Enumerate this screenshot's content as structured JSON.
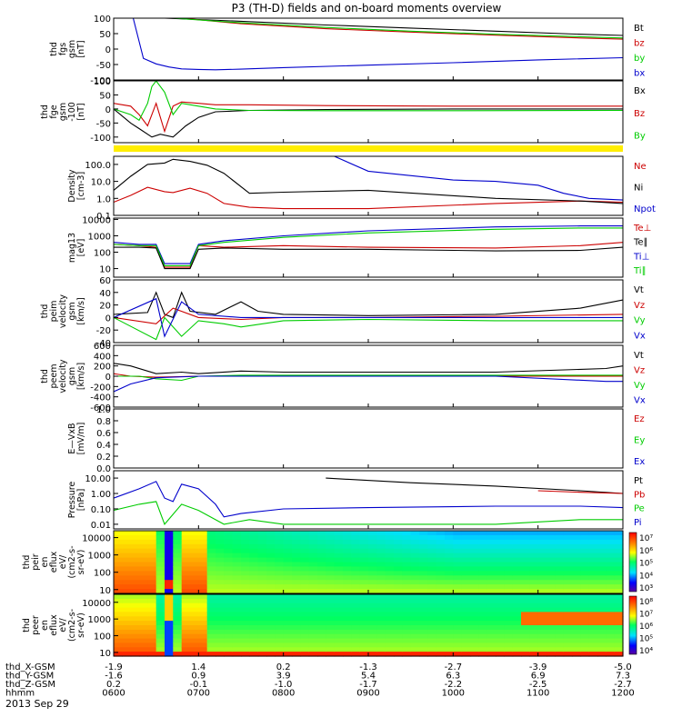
{
  "chart_data": {
    "type": "line",
    "title": "P3 (TH-D) fields and on-board moments overview",
    "date": "2013 Sep 29",
    "x_axis": {
      "unit": "hhmm",
      "range": [
        0,
        6
      ],
      "ticks": [
        "0600",
        "0700",
        "0800",
        "0900",
        "1000",
        "1100",
        "1200"
      ],
      "rows": [
        {
          "label": "thd_X-GSM",
          "values": [
            "-1.9",
            "1.4",
            "0.2",
            "-1.3",
            "-2.7",
            "-3.9",
            "-5.0"
          ]
        },
        {
          "label": "thd_Y-GSM",
          "values": [
            "-1.6",
            "0.9",
            "3.9",
            "5.4",
            "6.3",
            "6.9",
            "7.3"
          ]
        },
        {
          "label": "thd_Z-GSM",
          "values": [
            "0.2",
            "-0.1",
            "-1.0",
            "-1.7",
            "-2.2",
            "-2.5",
            "-2.7"
          ]
        },
        {
          "label": "hhmm",
          "values": [
            "0600",
            "0700",
            "0800",
            "0900",
            "1000",
            "1100",
            "1200"
          ]
        }
      ]
    },
    "panels": [
      {
        "ylabel": [
          "thd",
          "fgs",
          "gsm",
          "[nT]"
        ],
        "yscale": "linear",
        "ylim": [
          -100,
          100
        ],
        "yticks": [
          "100",
          "50",
          "0",
          "-50",
          "-100"
        ],
        "series": [
          {
            "name": "Bt",
            "color": "#000000",
            "x": [
              0.6,
              1.5,
              2.5,
              3.5,
              4.5,
              5.5,
              6.0
            ],
            "y": [
              100,
              90,
              78,
              68,
              58,
              48,
              44
            ]
          },
          {
            "name": "bz",
            "color": "#cc0000",
            "x": [
              0.8,
              1.5,
              2.5,
              3.5,
              4.5,
              5.5,
              6.0
            ],
            "y": [
              100,
              82,
              66,
              55,
              45,
              36,
              32
            ]
          },
          {
            "name": "by",
            "color": "#00cc00",
            "x": [
              0.7,
              1.5,
              2.5,
              3.5,
              4.5,
              5.5,
              6.0
            ],
            "y": [
              100,
              85,
              70,
              58,
              48,
              40,
              36
            ]
          },
          {
            "name": "bx",
            "color": "#0000cc",
            "x": [
              0.23,
              0.35,
              0.5,
              0.65,
              0.8,
              1.0,
              1.2,
              1.5,
              2.0,
              3.0,
              4.0,
              5.0,
              6.0
            ],
            "y": [
              100,
              -30,
              -48,
              -58,
              -64,
              -66,
              -67,
              -65,
              -60,
              -52,
              -44,
              -35,
              -28
            ]
          }
        ]
      },
      {
        "ylabel": [
          "thd",
          "fge",
          "gsm",
          "-100",
          "[nT]"
        ],
        "yscale": "linear",
        "ylim": [
          -120,
          100
        ],
        "yticks": [
          "100",
          "50",
          "0",
          "-50",
          "-100"
        ],
        "series": [
          {
            "name": "Bx",
            "color": "#000000",
            "x": [
              0,
              0.2,
              0.3,
              0.45,
              0.55,
              0.7,
              0.85,
              1.0,
              1.2,
              1.6,
              2.5,
              4.0,
              6.0
            ],
            "y": [
              0,
              -50,
              -70,
              -100,
              -90,
              -100,
              -60,
              -30,
              -10,
              -5,
              -2,
              0,
              0
            ]
          },
          {
            "name": "Bz",
            "color": "#cc0000",
            "x": [
              0,
              0.2,
              0.3,
              0.4,
              0.5,
              0.6,
              0.7,
              0.8,
              1.0,
              1.2,
              1.6,
              2.5,
              4.0,
              6.0
            ],
            "y": [
              20,
              10,
              -20,
              -60,
              20,
              -80,
              10,
              25,
              20,
              15,
              15,
              12,
              10,
              10
            ]
          },
          {
            "name": "By",
            "color": "#00cc00",
            "x": [
              0,
              0.2,
              0.3,
              0.4,
              0.45,
              0.5,
              0.6,
              0.7,
              0.8,
              1.0,
              1.2,
              1.6,
              2.5,
              4.0,
              6.0
            ],
            "y": [
              0,
              -20,
              -40,
              20,
              80,
              100,
              60,
              -20,
              20,
              10,
              0,
              -5,
              -6,
              -6,
              -5
            ]
          }
        ]
      },
      {
        "ylabel": [
          "Density",
          "[cm-3]"
        ],
        "yscale": "log",
        "ylim": [
          0.1,
          300
        ],
        "yticks": [
          "100.0",
          "10.0",
          "1.0",
          "0.1"
        ],
        "series": [
          {
            "name": "Ne",
            "color": "#cc0000",
            "x": [
              0,
              0.2,
              0.4,
              0.6,
              0.7,
              0.9,
              1.1,
              1.3,
              1.6,
              2.0,
              3.0,
              4.5,
              5.5,
              6.0
            ],
            "y": [
              0.6,
              1.5,
              4.5,
              2.5,
              2.2,
              4.0,
              2.0,
              0.5,
              0.3,
              0.25,
              0.25,
              0.5,
              0.7,
              0.6
            ]
          },
          {
            "name": "Ni",
            "color": "#000000",
            "x": [
              0,
              0.2,
              0.4,
              0.6,
              0.7,
              0.9,
              1.1,
              1.3,
              1.6,
              2.0,
              3.0,
              4.5,
              5.5,
              6.0
            ],
            "y": [
              3,
              20,
              100,
              120,
              200,
              150,
              90,
              30,
              2,
              2.3,
              3,
              1.0,
              0.7,
              0.5
            ]
          },
          {
            "name": "Npot",
            "color": "#0000cc",
            "x": [
              2.6,
              3.0,
              4.0,
              4.5,
              5.0,
              5.3,
              5.6,
              6.0
            ],
            "y": [
              300,
              40,
              12,
              10,
              6,
              2,
              1,
              0.8
            ]
          }
        ]
      },
      {
        "ylabel": [
          "mag13",
          "[eV]"
        ],
        "yscale": "log",
        "ylim": [
          3,
          12000
        ],
        "yticks": [
          "10000",
          "1000",
          "100",
          "10"
        ],
        "series": [
          {
            "name": "Te⊥",
            "color": "#cc0000",
            "x": [
              0,
              0.3,
              0.5,
              0.6,
              0.9,
              1.0,
              1.3,
              2.0,
              3.0,
              4.5,
              5.5,
              6.0
            ],
            "y": [
              300,
              250,
              200,
              12,
              12,
              250,
              200,
              250,
              200,
              180,
              250,
              400
            ]
          },
          {
            "name": "Te∥",
            "color": "#000000",
            "x": [
              0,
              0.3,
              0.5,
              0.6,
              0.9,
              1.0,
              1.3,
              2.0,
              3.0,
              4.5,
              5.5,
              6.0
            ],
            "y": [
              200,
              200,
              180,
              10,
              10,
              150,
              180,
              150,
              150,
              120,
              130,
              200
            ]
          },
          {
            "name": "Ti⊥",
            "color": "#0000cc",
            "x": [
              0,
              0.3,
              0.5,
              0.6,
              0.9,
              1.0,
              1.3,
              2.0,
              3.0,
              4.5,
              5.5,
              6.0
            ],
            "y": [
              400,
              300,
              300,
              20,
              20,
              300,
              500,
              1000,
              2000,
              3500,
              4000,
              4000
            ]
          },
          {
            "name": "Ti∥",
            "color": "#00cc00",
            "x": [
              0,
              0.3,
              0.5,
              0.6,
              0.9,
              1.0,
              1.3,
              2.0,
              3.0,
              4.5,
              5.5,
              6.0
            ],
            "y": [
              300,
              250,
              250,
              15,
              15,
              250,
              400,
              800,
              1500,
              2500,
              3000,
              3000
            ]
          }
        ]
      },
      {
        "ylabel": [
          "thd",
          "peim",
          "velocity",
          "gsm",
          "[km/s]"
        ],
        "yscale": "linear",
        "ylim": [
          -40,
          60
        ],
        "yticks": [
          "60",
          "40",
          "20",
          "0",
          "-20",
          "-40"
        ],
        "series": [
          {
            "name": "Vt",
            "color": "#000000",
            "x": [
              0,
              0.4,
              0.5,
              0.6,
              0.7,
              0.8,
              0.9,
              1.2,
              1.5,
              1.7,
              2.0,
              3.0,
              4.5,
              5.5,
              6.0
            ],
            "y": [
              5,
              8,
              40,
              5,
              0,
              40,
              10,
              5,
              25,
              10,
              5,
              3,
              5,
              15,
              28
            ]
          },
          {
            "name": "Vz",
            "color": "#cc0000",
            "x": [
              0,
              0.5,
              0.7,
              1.0,
              1.5,
              2.0,
              3.0,
              4.5,
              6.0
            ],
            "y": [
              0,
              -10,
              15,
              0,
              -3,
              0,
              0,
              2,
              5
            ]
          },
          {
            "name": "Vy",
            "color": "#00cc00",
            "x": [
              0,
              0.5,
              0.6,
              0.8,
              1.0,
              1.3,
              1.5,
              2.0,
              3.0,
              4.5,
              6.0
            ],
            "y": [
              0,
              -35,
              0,
              -30,
              -5,
              -10,
              -15,
              -5,
              -3,
              -5,
              -5
            ]
          },
          {
            "name": "Vx",
            "color": "#0000cc",
            "x": [
              0,
              0.5,
              0.6,
              0.8,
              1.0,
              1.5,
              2.0,
              3.0,
              4.5,
              6.0
            ],
            "y": [
              0,
              30,
              -30,
              25,
              5,
              0,
              0,
              0,
              0,
              0
            ]
          }
        ]
      },
      {
        "ylabel": [
          "thd",
          "peem",
          "velocity",
          "gsm",
          "[km/s]"
        ],
        "yscale": "linear",
        "ylim": [
          -600,
          600
        ],
        "yticks": [
          "600",
          "400",
          "200",
          "0",
          "-200",
          "-400",
          "-600"
        ],
        "series": [
          {
            "name": "Vt",
            "color": "#000000",
            "x": [
              0,
              0.2,
              0.5,
              0.8,
              1.0,
              1.5,
              2.0,
              3.0,
              4.5,
              5.8,
              6.0
            ],
            "y": [
              250,
              200,
              50,
              80,
              50,
              100,
              80,
              80,
              80,
              150,
              200
            ]
          },
          {
            "name": "Vz",
            "color": "#cc0000",
            "x": [
              0,
              0.2,
              0.5,
              1.0,
              2.0,
              3.0,
              4.5,
              6.0
            ],
            "y": [
              50,
              0,
              -20,
              0,
              0,
              0,
              0,
              0
            ]
          },
          {
            "name": "Vy",
            "color": "#00cc00",
            "x": [
              0,
              0.3,
              0.5,
              0.8,
              1.0,
              1.5,
              2.0,
              3.0,
              4.5,
              6.0
            ],
            "y": [
              0,
              0,
              -50,
              -80,
              0,
              20,
              20,
              20,
              20,
              20
            ]
          },
          {
            "name": "Vx",
            "color": "#0000cc",
            "x": [
              0,
              0.2,
              0.5,
              1.0,
              1.5,
              2.0,
              3.0,
              4.5,
              5.8,
              6.0
            ],
            "y": [
              -300,
              -150,
              -30,
              0,
              0,
              0,
              0,
              0,
              -100,
              -100
            ]
          }
        ]
      },
      {
        "ylabel": [
          "E—VxB",
          "[mV/m]"
        ],
        "yscale": "linear",
        "ylim": [
          0,
          1
        ],
        "yticks": [
          "1.0",
          "0.8",
          "0.6",
          "0.4",
          "0.2",
          "0.0"
        ],
        "series": [
          {
            "name": "Ez",
            "color": "#cc0000",
            "x": [],
            "y": []
          },
          {
            "name": "Ey",
            "color": "#00cc00",
            "x": [],
            "y": []
          },
          {
            "name": "Ex",
            "color": "#0000cc",
            "x": [],
            "y": []
          }
        ]
      },
      {
        "ylabel": [
          "Pressure",
          "[nPa]"
        ],
        "yscale": "log",
        "ylim": [
          0.005,
          30
        ],
        "yticks": [
          "10.00",
          "1.00",
          "0.10",
          "0.01"
        ],
        "series": [
          {
            "name": "Pt",
            "color": "#000000",
            "x": [
              2.5,
              3.5,
              4.5,
              5.5,
              6.0
            ],
            "y": [
              10,
              5,
              3,
              1.5,
              1.0
            ]
          },
          {
            "name": "Pb",
            "color": "#cc0000",
            "x": [
              5.0,
              5.5,
              6.0
            ],
            "y": [
              1.5,
              1.2,
              1.0
            ]
          },
          {
            "name": "Pe",
            "color": "#00cc00",
            "x": [
              0,
              0.3,
              0.5,
              0.6,
              0.8,
              1.0,
              1.3,
              1.6,
              2.0,
              3.0,
              4.5,
              5.5,
              6.0
            ],
            "y": [
              0.08,
              0.2,
              0.3,
              0.01,
              0.2,
              0.08,
              0.01,
              0.02,
              0.01,
              0.01,
              0.01,
              0.02,
              0.02
            ]
          },
          {
            "name": "Pi",
            "color": "#0000cc",
            "x": [
              0,
              0.3,
              0.5,
              0.6,
              0.7,
              0.8,
              1.0,
              1.2,
              1.3,
              1.5,
              2.0,
              3.0,
              4.5,
              5.5,
              6.0
            ],
            "y": [
              0.5,
              2,
              6,
              0.5,
              0.3,
              4,
              2,
              0.2,
              0.03,
              0.05,
              0.1,
              0.12,
              0.15,
              0.15,
              0.12
            ]
          }
        ]
      },
      {
        "type": "heatmap",
        "ylabel": [
          "thd",
          "peir",
          "en",
          "eflux",
          "eV/",
          "(cm2-s-",
          "sr-eV)"
        ],
        "yscale": "log",
        "ylim": [
          6,
          25000
        ],
        "yticks": [
          "10000",
          "1000",
          "100",
          "10"
        ],
        "colorbar": {
          "ticks": [
            "10⁷",
            "10⁶",
            "10⁵",
            "10⁴",
            "10³"
          ],
          "range_log10": [
            2.7,
            7.5
          ]
        }
      },
      {
        "type": "heatmap",
        "ylabel": [
          "thd",
          "peer",
          "en",
          "eflux",
          "eV/",
          "(cm2-s-",
          "sr-eV)"
        ],
        "yscale": "log",
        "ylim": [
          6,
          30000
        ],
        "yticks": [
          "10000",
          "1000",
          "100",
          "10"
        ],
        "colorbar": {
          "ticks": [
            "10⁸",
            "10⁷",
            "10⁶",
            "10⁵",
            "10⁴"
          ],
          "range_log10": [
            3.5,
            8.3
          ]
        }
      }
    ]
  }
}
